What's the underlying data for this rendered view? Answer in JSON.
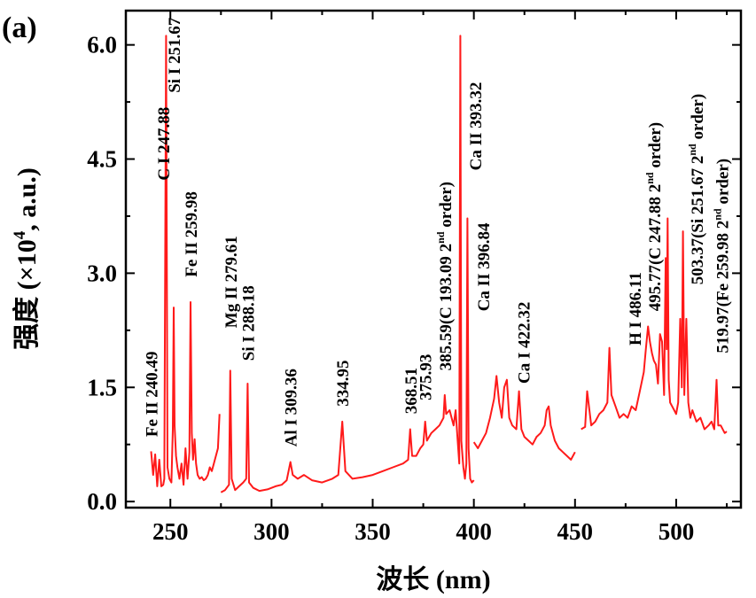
{
  "chart_data": {
    "type": "line",
    "panel_label": "(a)",
    "xlabel": "波长 (nm)",
    "ylabel_prefix": "强度 (×10",
    "ylabel_sup": "4",
    "ylabel_suffix": ", a.u.)",
    "xlim": [
      228,
      532
    ],
    "ylim": [
      -0.08,
      6.45
    ],
    "xticks": [
      {
        "value": 250,
        "label": "250"
      },
      {
        "value": 300,
        "label": "300"
      },
      {
        "value": 350,
        "label": "350"
      },
      {
        "value": 400,
        "label": "400"
      },
      {
        "value": 450,
        "label": "450"
      },
      {
        "value": 500,
        "label": "500"
      }
    ],
    "yticks": [
      {
        "value": 0.0,
        "label": "0.0"
      },
      {
        "value": 1.5,
        "label": "1.5"
      },
      {
        "value": 3.0,
        "label": "3.0"
      },
      {
        "value": 4.5,
        "label": "4.5"
      },
      {
        "value": 6.0,
        "label": "6.0"
      }
    ],
    "series_color": "#ff1a1a",
    "series": [
      {
        "name": "segment-1",
        "x": [
          240.5,
          241.5,
          242.5,
          243.5,
          244.5,
          245.5,
          246.5,
          247.0,
          247.88,
          248.6,
          249.5,
          250.5,
          251.2,
          251.67,
          252.1,
          252.8,
          253.5,
          254.5,
          255.5,
          256.5,
          257.5,
          258.5,
          259.4,
          259.98,
          260.6,
          261.2,
          262.0,
          262.7,
          263.5,
          264.5,
          265.5,
          266.5,
          267.5,
          268.5,
          269.5,
          270.5,
          271.5,
          272.5,
          273.5,
          274.3
        ],
        "y": [
          0.66,
          0.35,
          0.62,
          0.2,
          0.55,
          0.2,
          0.22,
          0.3,
          6.12,
          0.45,
          0.3,
          0.25,
          0.95,
          2.55,
          1.0,
          0.6,
          0.45,
          0.3,
          0.5,
          0.22,
          0.7,
          0.3,
          0.65,
          2.62,
          0.9,
          0.55,
          0.82,
          0.5,
          0.35,
          0.3,
          0.32,
          0.28,
          0.3,
          0.35,
          0.45,
          0.4,
          0.5,
          0.6,
          0.7,
          1.15
        ]
      },
      {
        "name": "segment-2",
        "x": [
          275.0,
          277.0,
          279.0,
          279.61,
          280.3,
          282.0,
          284.0,
          286.0,
          287.5,
          288.18,
          288.9,
          291.0,
          294.0,
          298.0,
          302.0,
          305.0,
          307.5,
          309.36,
          310.5,
          313.0,
          316.0,
          320.0,
          325.0,
          330.0,
          333.0,
          334.95,
          336.5,
          340.0,
          345.0,
          350.0,
          355.0,
          360.0,
          365.0,
          367.5,
          368.51,
          369.5,
          371.5,
          373.5,
          375.0,
          375.93,
          376.8,
          379.0,
          381.0,
          383.0,
          385.0,
          385.59,
          386.3,
          388.0,
          390.0,
          391.0,
          392.0,
          392.8,
          393.32,
          393.8,
          394.8,
          395.6,
          396.3,
          396.84,
          397.4,
          398.2,
          399.0,
          400.0
        ],
        "y": [
          0.12,
          0.15,
          0.22,
          1.72,
          0.3,
          0.15,
          0.2,
          0.25,
          0.3,
          1.55,
          0.25,
          0.18,
          0.14,
          0.16,
          0.2,
          0.22,
          0.28,
          0.52,
          0.35,
          0.3,
          0.35,
          0.28,
          0.25,
          0.3,
          0.35,
          1.05,
          0.4,
          0.3,
          0.32,
          0.35,
          0.4,
          0.45,
          0.5,
          0.55,
          0.95,
          0.6,
          0.6,
          0.7,
          0.75,
          1.05,
          0.8,
          0.9,
          0.95,
          1.0,
          1.1,
          1.4,
          1.15,
          1.2,
          1.0,
          1.2,
          0.8,
          0.5,
          6.12,
          0.8,
          0.45,
          0.3,
          0.5,
          3.72,
          0.7,
          0.3,
          0.25,
          0.28
        ]
      },
      {
        "name": "segment-3",
        "x": [
          400.0,
          402.0,
          404.0,
          406.0,
          408.0,
          410.0,
          411.2,
          412.5,
          413.8,
          415.0,
          416.3,
          417.5,
          419.0,
          421.0,
          422.32,
          423.5,
          425.0,
          427.0,
          429.0,
          431.0,
          433.0,
          435.0,
          436.0,
          437.0,
          438.0,
          440.0,
          442.0,
          444.0,
          446.0,
          448.0,
          450.0
        ],
        "y": [
          0.78,
          0.7,
          0.8,
          0.9,
          1.1,
          1.35,
          1.65,
          1.3,
          1.1,
          1.5,
          1.6,
          1.1,
          1.0,
          0.95,
          1.45,
          0.95,
          0.85,
          0.8,
          0.75,
          0.85,
          0.9,
          1.0,
          1.2,
          1.25,
          1.0,
          0.8,
          0.7,
          0.65,
          0.6,
          0.55,
          0.65
        ]
      },
      {
        "name": "segment-4",
        "x": [
          453.0,
          455.0,
          456.0,
          458.0,
          460.0,
          462.0,
          464.0,
          466.0,
          467.0,
          468.0,
          470.0,
          472.0,
          474.0,
          476.0,
          478.0,
          480.0,
          482.0,
          484.0,
          485.0,
          486.11,
          487.0,
          488.0,
          489.0,
          490.0,
          491.0,
          492.0,
          493.0,
          494.0,
          494.8,
          495.3,
          495.77,
          496.3,
          497.0,
          498.0,
          499.0,
          500.0,
          501.0,
          502.0,
          502.8,
          503.37,
          504.0,
          505.0,
          506.0,
          507.0,
          508.0,
          510.0,
          512.0,
          514.0,
          516.0,
          517.5,
          518.8,
          519.97,
          520.8,
          522.0,
          524.0,
          525.0
        ],
        "y": [
          0.95,
          0.98,
          1.45,
          1.0,
          1.05,
          1.15,
          1.2,
          1.3,
          2.02,
          1.4,
          1.25,
          1.1,
          1.15,
          1.1,
          1.25,
          1.2,
          1.45,
          1.7,
          2.0,
          2.3,
          2.1,
          1.95,
          1.85,
          1.8,
          1.55,
          2.2,
          2.1,
          1.4,
          3.2,
          2.0,
          3.72,
          1.6,
          1.3,
          1.25,
          1.2,
          1.15,
          1.3,
          2.4,
          1.5,
          3.55,
          1.4,
          2.4,
          1.3,
          1.1,
          1.2,
          1.05,
          1.1,
          0.95,
          1.0,
          1.05,
          0.95,
          1.6,
          1.0,
          1.0,
          0.9,
          0.92
        ]
      }
    ],
    "annotations": [
      {
        "text": "Fe II 240.49",
        "x": 240.49,
        "y": 0.85
      },
      {
        "text": "C I 247.88",
        "x": 246.5,
        "y": 4.22
      },
      {
        "text": "Si I 251.67",
        "x": 251.67,
        "y": 5.37
      },
      {
        "text": "Fe II 259.98",
        "x": 259.98,
        "y": 2.95
      },
      {
        "text": "Mg II 279.61",
        "x": 279.61,
        "y": 2.28
      },
      {
        "text": "Si I 288.18",
        "x": 288.18,
        "y": 1.85
      },
      {
        "text": "Al I 309.36",
        "x": 309.36,
        "y": 0.72
      },
      {
        "text": "334.95",
        "x": 334.95,
        "y": 1.25
      },
      {
        "text": "368.51",
        "x": 368.51,
        "y": 1.15
      },
      {
        "text": "375.93",
        "x": 375.93,
        "y": 1.33
      },
      {
        "text": "385.59(C 193.09 2",
        "sup": "nd",
        "tail": " order)",
        "x": 385.59,
        "y": 1.72
      },
      {
        "text": "Ca II 393.32",
        "x": 400.5,
        "y": 4.35
      },
      {
        "text": "Ca II 396.84",
        "x": 404.5,
        "y": 2.5
      },
      {
        "text": "Ca I 422.32",
        "x": 424.5,
        "y": 1.55
      },
      {
        "text": "H I 486.11",
        "x": 479.5,
        "y": 2.05
      },
      {
        "text": "495.77(C 247.88 2",
        "sup": "nd",
        "tail": " order)",
        "x": 489.0,
        "y": 2.5
      },
      {
        "text": "503.37(Si 251.67 2",
        "sup": "nd",
        "tail": " order)",
        "x": 510.0,
        "y": 2.85
      },
      {
        "text": "519.97(Fe 259.98 2",
        "sup": "nd",
        "tail": " order)",
        "x": 522.5,
        "y": 1.95
      }
    ]
  }
}
